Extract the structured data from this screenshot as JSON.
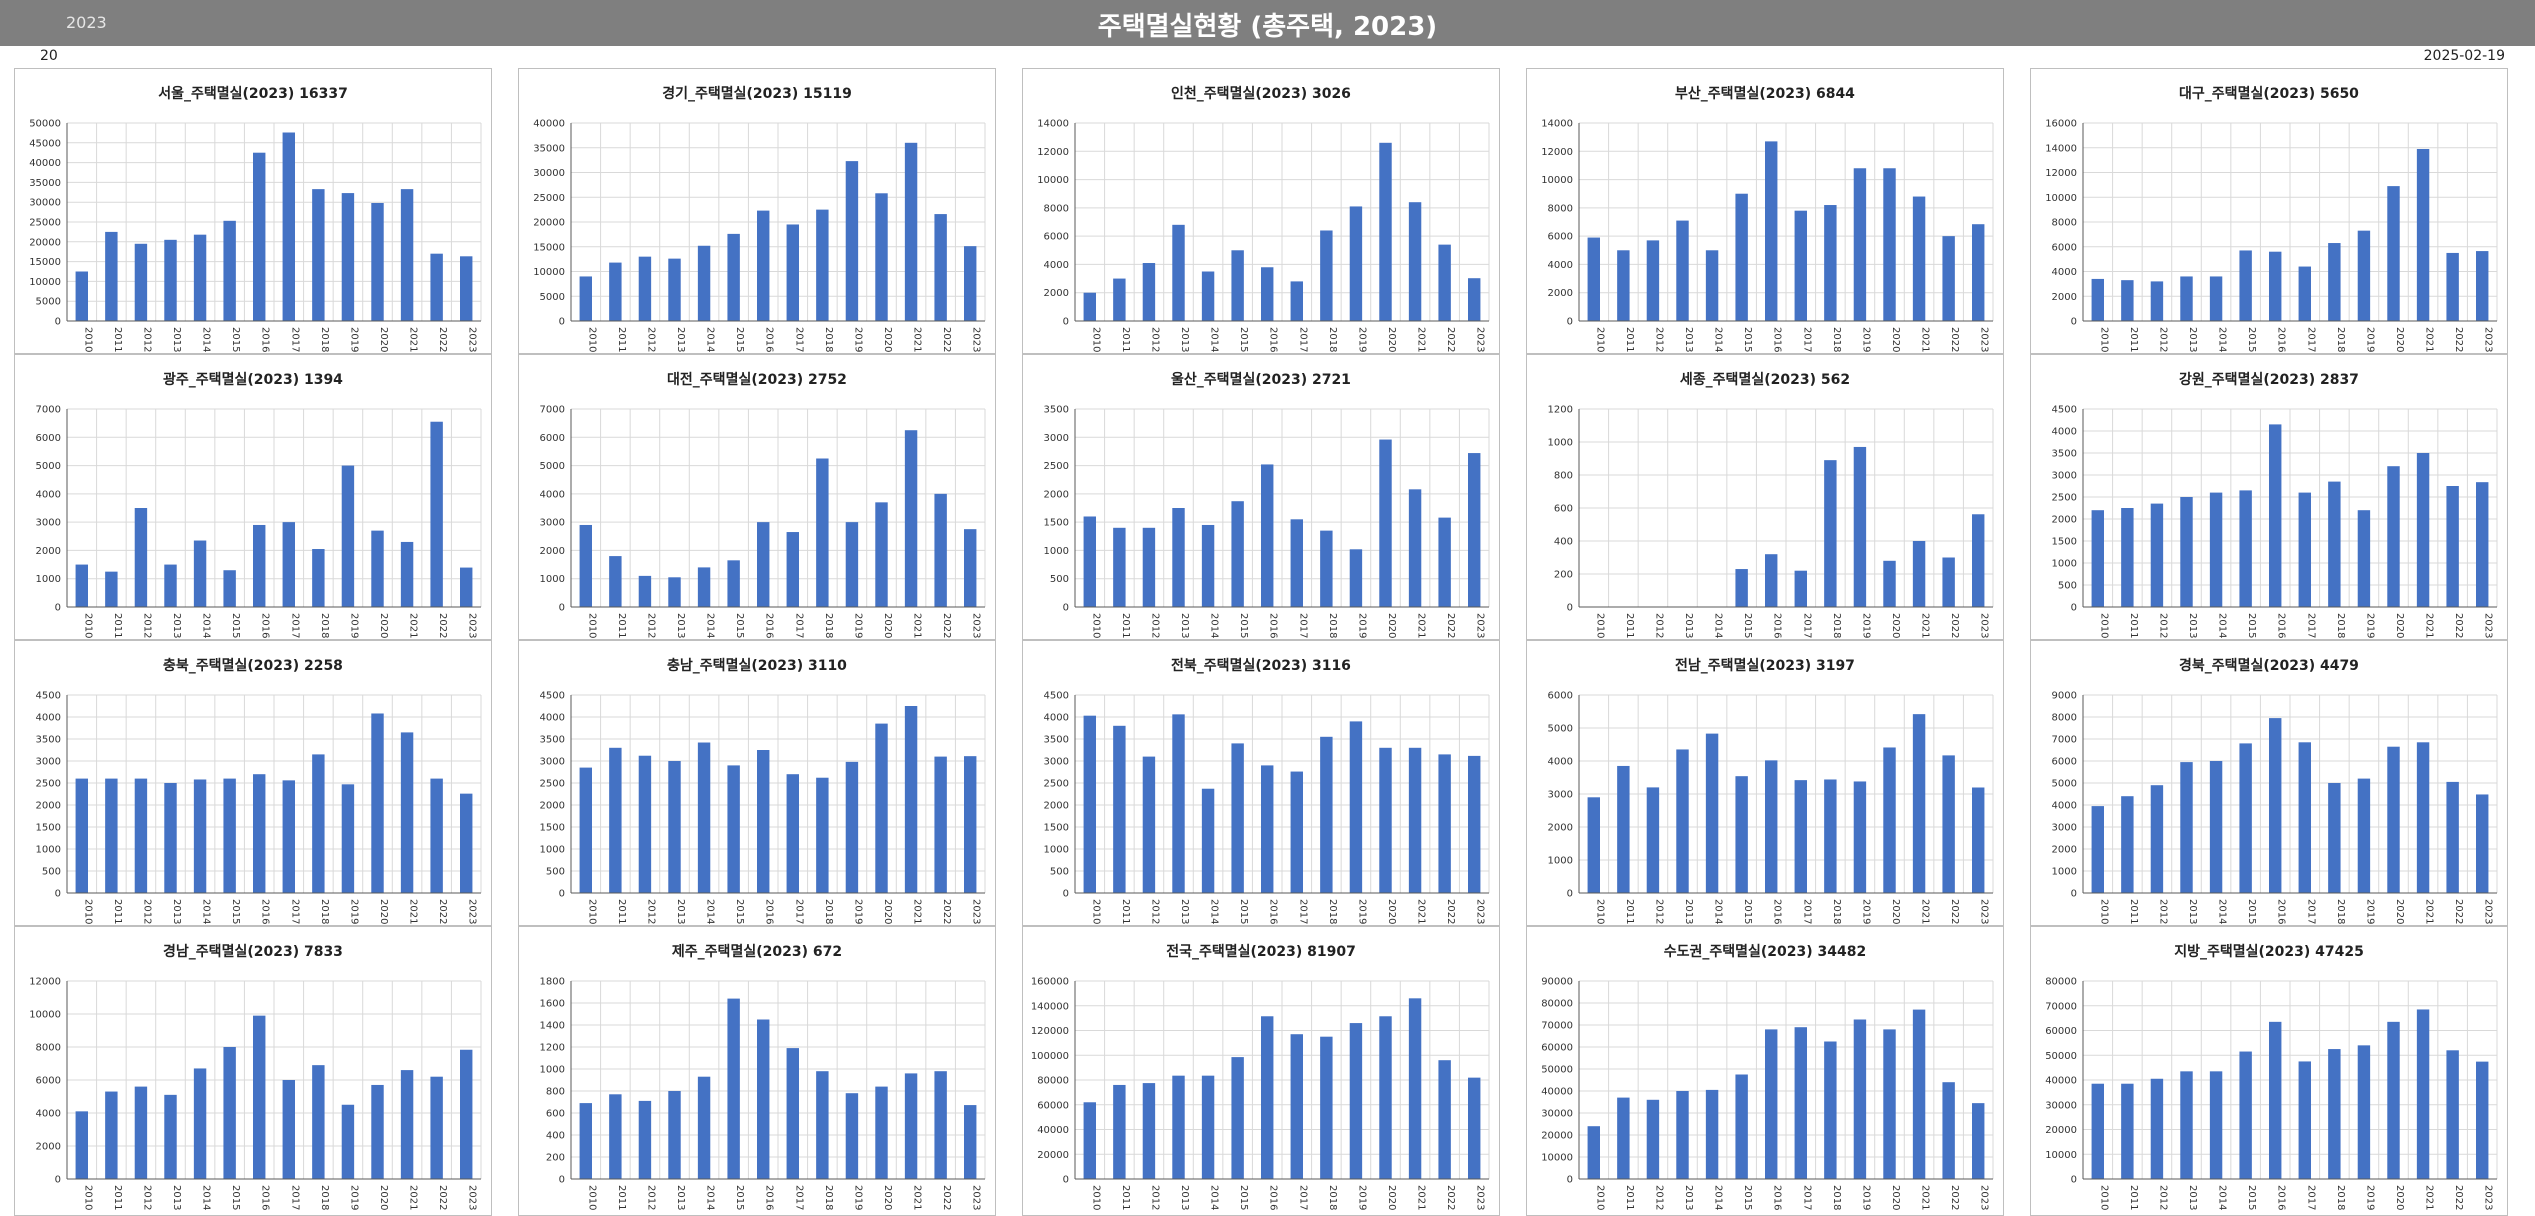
{
  "header": {
    "year": "2023",
    "title": "주택멸실현황 (총주택, 2023)"
  },
  "subbar": {
    "left": "20",
    "right": "2025-02-19"
  },
  "colors": {
    "bar": "#4472c4",
    "grid": "#d9d9d9",
    "axis": "#595959"
  },
  "chart_data": [
    {
      "type": "bar",
      "title": "서울_주택멸실(2023)  16337",
      "categories": [
        "2010",
        "2011",
        "2012",
        "2013",
        "2014",
        "2015",
        "2016",
        "2017",
        "2018",
        "2019",
        "2020",
        "2021",
        "2022",
        "2023"
      ],
      "values": [
        12500,
        22500,
        19500,
        20500,
        21800,
        25300,
        42500,
        47600,
        33300,
        32300,
        29800,
        33300,
        17000,
        16337
      ],
      "ylim": [
        0,
        50000
      ],
      "ytick_step": 5000
    },
    {
      "type": "bar",
      "title": "경기_주택멸실(2023)  15119",
      "categories": [
        "2010",
        "2011",
        "2012",
        "2013",
        "2014",
        "2015",
        "2016",
        "2017",
        "2018",
        "2019",
        "2020",
        "2021",
        "2022",
        "2023"
      ],
      "values": [
        9000,
        11800,
        13000,
        12600,
        15200,
        17600,
        22300,
        19500,
        22500,
        32300,
        25800,
        36000,
        21600,
        15119
      ],
      "ylim": [
        0,
        40000
      ],
      "ytick_step": 5000
    },
    {
      "type": "bar",
      "title": "인천_주택멸실(2023)  3026",
      "categories": [
        "2010",
        "2011",
        "2012",
        "2013",
        "2014",
        "2015",
        "2016",
        "2017",
        "2018",
        "2019",
        "2020",
        "2021",
        "2022",
        "2023"
      ],
      "values": [
        2000,
        3000,
        4100,
        6800,
        3500,
        5000,
        3800,
        2800,
        6400,
        8100,
        12600,
        8400,
        5400,
        3026
      ],
      "ylim": [
        0,
        14000
      ],
      "ytick_step": 2000
    },
    {
      "type": "bar",
      "title": "부산_주택멸실(2023)  6844",
      "categories": [
        "2010",
        "2011",
        "2012",
        "2013",
        "2014",
        "2015",
        "2016",
        "2017",
        "2018",
        "2019",
        "2020",
        "2021",
        "2022",
        "2023"
      ],
      "values": [
        5900,
        5000,
        5700,
        7100,
        5000,
        9000,
        12700,
        7800,
        8200,
        10800,
        10800,
        8800,
        6000,
        6844
      ],
      "ylim": [
        0,
        14000
      ],
      "ytick_step": 2000
    },
    {
      "type": "bar",
      "title": "대구_주택멸실(2023)  5650",
      "categories": [
        "2010",
        "2011",
        "2012",
        "2013",
        "2014",
        "2015",
        "2016",
        "2017",
        "2018",
        "2019",
        "2020",
        "2021",
        "2022",
        "2023"
      ],
      "values": [
        3400,
        3300,
        3200,
        3600,
        3600,
        5700,
        5600,
        4400,
        6300,
        7300,
        10900,
        13900,
        5500,
        5650
      ],
      "ylim": [
        0,
        16000
      ],
      "ytick_step": 2000
    },
    {
      "type": "bar",
      "title": "광주_주택멸실(2023)  1394",
      "categories": [
        "2010",
        "2011",
        "2012",
        "2013",
        "2014",
        "2015",
        "2016",
        "2017",
        "2018",
        "2019",
        "2020",
        "2021",
        "2022",
        "2023"
      ],
      "values": [
        1500,
        1250,
        3500,
        1500,
        2350,
        1300,
        2900,
        3000,
        2050,
        5000,
        2700,
        2300,
        6550,
        1394
      ],
      "ylim": [
        0,
        7000
      ],
      "ytick_step": 1000
    },
    {
      "type": "bar",
      "title": "대전_주택멸실(2023)  2752",
      "categories": [
        "2010",
        "2011",
        "2012",
        "2013",
        "2014",
        "2015",
        "2016",
        "2017",
        "2018",
        "2019",
        "2020",
        "2021",
        "2022",
        "2023"
      ],
      "values": [
        2900,
        1800,
        1100,
        1050,
        1400,
        1650,
        3000,
        2650,
        5250,
        3000,
        3700,
        6250,
        4000,
        2752
      ],
      "ylim": [
        0,
        7000
      ],
      "ytick_step": 1000
    },
    {
      "type": "bar",
      "title": "울산_주택멸실(2023)  2721",
      "categories": [
        "2010",
        "2011",
        "2012",
        "2013",
        "2014",
        "2015",
        "2016",
        "2017",
        "2018",
        "2019",
        "2020",
        "2021",
        "2022",
        "2023"
      ],
      "values": [
        1600,
        1400,
        1400,
        1750,
        1450,
        1870,
        2520,
        1550,
        1350,
        1020,
        2960,
        2080,
        1580,
        2721
      ],
      "ylim": [
        0,
        3500
      ],
      "ytick_step": 500
    },
    {
      "type": "bar",
      "title": "세종_주택멸실(2023)  562",
      "categories": [
        "2010",
        "2011",
        "2012",
        "2013",
        "2014",
        "2015",
        "2016",
        "2017",
        "2018",
        "2019",
        "2020",
        "2021",
        "2022",
        "2023"
      ],
      "values": [
        0,
        0,
        0,
        0,
        0,
        230,
        320,
        220,
        890,
        970,
        280,
        400,
        300,
        562
      ],
      "ylim": [
        0,
        1200
      ],
      "ytick_step": 200
    },
    {
      "type": "bar",
      "title": "강원_주택멸실(2023)  2837",
      "categories": [
        "2010",
        "2011",
        "2012",
        "2013",
        "2014",
        "2015",
        "2016",
        "2017",
        "2018",
        "2019",
        "2020",
        "2021",
        "2022",
        "2023"
      ],
      "values": [
        2200,
        2250,
        2350,
        2500,
        2600,
        2650,
        4150,
        2600,
        2850,
        2200,
        3200,
        3500,
        2750,
        2837
      ],
      "ylim": [
        0,
        4500
      ],
      "ytick_step": 500
    },
    {
      "type": "bar",
      "title": "충북_주택멸실(2023)  2258",
      "categories": [
        "2010",
        "2011",
        "2012",
        "2013",
        "2014",
        "2015",
        "2016",
        "2017",
        "2018",
        "2019",
        "2020",
        "2021",
        "2022",
        "2023"
      ],
      "values": [
        2600,
        2600,
        2600,
        2500,
        2580,
        2600,
        2700,
        2560,
        3150,
        2470,
        4080,
        3650,
        2600,
        2258
      ],
      "ylim": [
        0,
        4500
      ],
      "ytick_step": 500
    },
    {
      "type": "bar",
      "title": "충남_주택멸실(2023)  3110",
      "categories": [
        "2010",
        "2011",
        "2012",
        "2013",
        "2014",
        "2015",
        "2016",
        "2017",
        "2018",
        "2019",
        "2020",
        "2021",
        "2022",
        "2023"
      ],
      "values": [
        2850,
        3300,
        3120,
        3000,
        3420,
        2900,
        3250,
        2700,
        2620,
        2980,
        3850,
        4250,
        3100,
        3110
      ],
      "ylim": [
        0,
        4500
      ],
      "ytick_step": 500
    },
    {
      "type": "bar",
      "title": "전북_주택멸실(2023)  3116",
      "categories": [
        "2010",
        "2011",
        "2012",
        "2013",
        "2014",
        "2015",
        "2016",
        "2017",
        "2018",
        "2019",
        "2020",
        "2021",
        "2022",
        "2023"
      ],
      "values": [
        4030,
        3800,
        3100,
        4060,
        2370,
        3400,
        2900,
        2760,
        3550,
        3900,
        3300,
        3300,
        3150,
        3116
      ],
      "ylim": [
        0,
        4500
      ],
      "ytick_step": 500
    },
    {
      "type": "bar",
      "title": "전남_주택멸실(2023)  3197",
      "categories": [
        "2010",
        "2011",
        "2012",
        "2013",
        "2014",
        "2015",
        "2016",
        "2017",
        "2018",
        "2019",
        "2020",
        "2021",
        "2022",
        "2023"
      ],
      "values": [
        2900,
        3850,
        3200,
        4350,
        4830,
        3540,
        4020,
        3420,
        3440,
        3380,
        4410,
        5420,
        4170,
        3197
      ],
      "ylim": [
        0,
        6000
      ],
      "ytick_step": 1000
    },
    {
      "type": "bar",
      "title": "경북_주택멸실(2023)  4479",
      "categories": [
        "2010",
        "2011",
        "2012",
        "2013",
        "2014",
        "2015",
        "2016",
        "2017",
        "2018",
        "2019",
        "2020",
        "2021",
        "2022",
        "2023"
      ],
      "values": [
        3950,
        4400,
        4900,
        5950,
        6000,
        6800,
        7950,
        6850,
        5000,
        5200,
        6650,
        6850,
        5050,
        4479
      ],
      "ylim": [
        0,
        9000
      ],
      "ytick_step": 1000
    },
    {
      "type": "bar",
      "title": "경남_주택멸실(2023)  7833",
      "categories": [
        "2010",
        "2011",
        "2012",
        "2013",
        "2014",
        "2015",
        "2016",
        "2017",
        "2018",
        "2019",
        "2020",
        "2021",
        "2022",
        "2023"
      ],
      "values": [
        4100,
        5300,
        5600,
        5100,
        6700,
        8000,
        9900,
        6000,
        6900,
        4500,
        5700,
        6600,
        6200,
        7833
      ],
      "ylim": [
        0,
        12000
      ],
      "ytick_step": 2000
    },
    {
      "type": "bar",
      "title": "제주_주택멸실(2023)  672",
      "categories": [
        "2010",
        "2011",
        "2012",
        "2013",
        "2014",
        "2015",
        "2016",
        "2017",
        "2018",
        "2019",
        "2020",
        "2021",
        "2022",
        "2023"
      ],
      "values": [
        690,
        770,
        710,
        800,
        930,
        1640,
        1450,
        1190,
        980,
        780,
        840,
        960,
        980,
        672
      ],
      "ylim": [
        0,
        1800
      ],
      "ytick_step": 200
    },
    {
      "type": "bar",
      "title": "전국_주택멸실(2023)  81907",
      "categories": [
        "2010",
        "2011",
        "2012",
        "2013",
        "2014",
        "2015",
        "2016",
        "2017",
        "2018",
        "2019",
        "2020",
        "2021",
        "2022",
        "2023"
      ],
      "values": [
        62000,
        76000,
        77500,
        83500,
        83500,
        98500,
        131500,
        117000,
        115000,
        126000,
        131500,
        146000,
        96000,
        81907
      ],
      "ylim": [
        0,
        160000
      ],
      "ytick_step": 20000
    },
    {
      "type": "bar",
      "title": "수도권_주택멸실(2023)  34482",
      "categories": [
        "2010",
        "2011",
        "2012",
        "2013",
        "2014",
        "2015",
        "2016",
        "2017",
        "2018",
        "2019",
        "2020",
        "2021",
        "2022",
        "2023"
      ],
      "values": [
        24000,
        37000,
        36000,
        40000,
        40500,
        47500,
        68000,
        69000,
        62500,
        72500,
        68000,
        77000,
        44000,
        34482
      ],
      "ylim": [
        0,
        90000
      ],
      "ytick_step": 10000
    },
    {
      "type": "bar",
      "title": "지방_주택멸실(2023)  47425",
      "categories": [
        "2010",
        "2011",
        "2012",
        "2013",
        "2014",
        "2015",
        "2016",
        "2017",
        "2018",
        "2019",
        "2020",
        "2021",
        "2022",
        "2023"
      ],
      "values": [
        38500,
        38500,
        40500,
        43500,
        43500,
        51500,
        63500,
        47500,
        52500,
        54000,
        63500,
        68500,
        52000,
        47425
      ],
      "ylim": [
        0,
        80000
      ],
      "ytick_step": 10000
    }
  ]
}
